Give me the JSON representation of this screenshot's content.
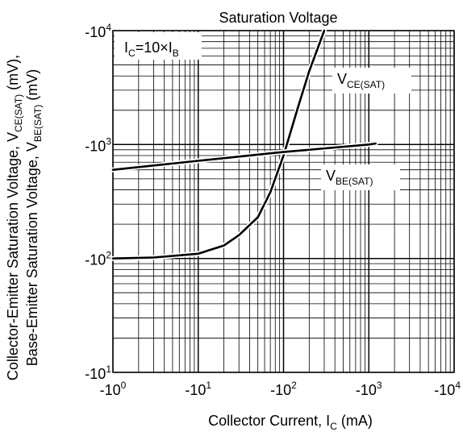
{
  "chart_data": {
    "type": "line",
    "title": "Saturation Voltage",
    "xlabel": {
      "main": "Collector Current, I",
      "sub": "C",
      "suffix": " (mA)"
    },
    "ylabel": {
      "line1": {
        "main": "Collector-Emitter Saturation Voltage, V",
        "sub": "CE(SAT)",
        "suffix": " (mV),"
      },
      "line2": {
        "main": "Base-Emitter Saturation Voltage, V",
        "sub": "BE(SAT)",
        "suffix": " (mV)"
      }
    },
    "x_scale": "log",
    "y_scale": "log",
    "xlim": [
      -1,
      -10000
    ],
    "ylim": [
      -10,
      -10000
    ],
    "grid": true,
    "x_ticks": [
      {
        "value": -1,
        "base": "-10",
        "exp": "0"
      },
      {
        "value": -10,
        "base": "-10",
        "exp": "1"
      },
      {
        "value": -100,
        "base": "-10",
        "exp": "2"
      },
      {
        "value": -1000,
        "base": "-10",
        "exp": "3"
      },
      {
        "value": -10000,
        "base": "-10",
        "exp": "4"
      }
    ],
    "y_ticks": [
      {
        "value": -10,
        "base": "-10",
        "exp": "1"
      },
      {
        "value": -100,
        "base": "-10",
        "exp": "2"
      },
      {
        "value": -1000,
        "base": "-10",
        "exp": "3"
      },
      {
        "value": -10000,
        "base": "-10",
        "exp": "4"
      }
    ],
    "condition": {
      "text1": "I",
      "sub1": "C",
      "text2": "=10×I",
      "sub2": "B"
    },
    "series": [
      {
        "name": "VCE(SAT)",
        "label_main": "V",
        "label_sub": "CE(SAT)",
        "x": [
          -1,
          -3,
          -10,
          -20,
          -30,
          -50,
          -70,
          -100,
          -150,
          -200,
          -300
        ],
        "y": [
          -100,
          -102,
          -110,
          -130,
          -160,
          -230,
          -380,
          -800,
          -2200,
          -4400,
          -10000
        ]
      },
      {
        "name": "VBE(SAT)",
        "label_main": "V",
        "label_sub": "BE(SAT)",
        "x": [
          -1,
          -10,
          -100,
          -1000,
          -1200
        ],
        "y": [
          -600,
          -720,
          -860,
          -1000,
          -1020
        ]
      }
    ]
  }
}
